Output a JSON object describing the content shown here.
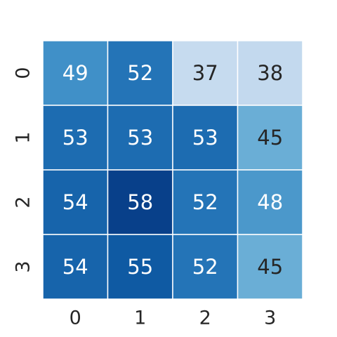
{
  "chart_data": {
    "type": "heatmap",
    "x_categories": [
      "0",
      "1",
      "2",
      "3"
    ],
    "y_categories": [
      "0",
      "1",
      "2",
      "3"
    ],
    "values": [
      [
        49,
        52,
        37,
        38
      ],
      [
        53,
        53,
        53,
        45
      ],
      [
        54,
        58,
        52,
        48
      ],
      [
        54,
        55,
        52,
        45
      ]
    ],
    "colors": [
      [
        "#4090c8",
        "#2474b7",
        "#c6dbef",
        "#c3d9ee"
      ],
      [
        "#1d6cb1",
        "#1d6cb1",
        "#1d6cb1",
        "#6aaed6"
      ],
      [
        "#1764ab",
        "#08408a",
        "#2474b7",
        "#4b98cb"
      ],
      [
        "#1764ab",
        "#0f5aa3",
        "#2474b7",
        "#6aaed6"
      ]
    ],
    "annotate": true
  }
}
